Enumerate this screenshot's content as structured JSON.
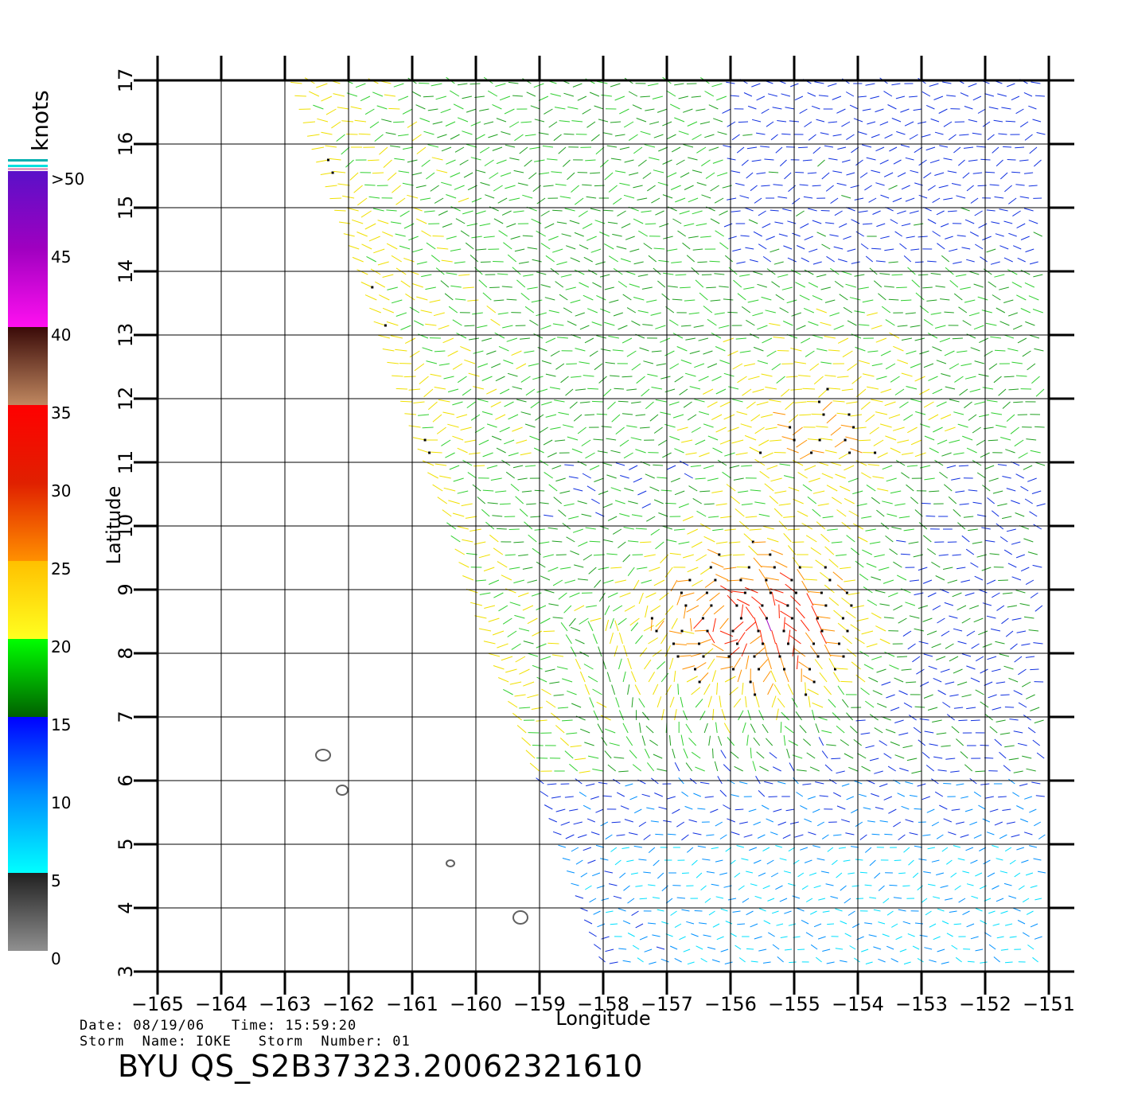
{
  "colorbar": {
    "unit_label": "knots",
    "tick_labels": [
      ">50",
      "45",
      "40",
      "35",
      "30",
      "25",
      "20",
      "15",
      "10",
      "5",
      "0"
    ],
    "stops": [
      {
        "value": 50,
        "color": "#5a10c8"
      },
      {
        "value": 45,
        "color": "#a000c0"
      },
      {
        "value": 40,
        "color": "#ff10f0"
      },
      {
        "value": 40,
        "color": "#3a0a08"
      },
      {
        "value": 35,
        "color": "#c08860"
      },
      {
        "value": 35,
        "color": "#ff0000"
      },
      {
        "value": 30,
        "color": "#e02000"
      },
      {
        "value": 25,
        "color": "#ff9000"
      },
      {
        "value": 25,
        "color": "#ffc000"
      },
      {
        "value": 20,
        "color": "#ffff20"
      },
      {
        "value": 20,
        "color": "#00ff00"
      },
      {
        "value": 15,
        "color": "#006000"
      },
      {
        "value": 15,
        "color": "#0000ff"
      },
      {
        "value": 10,
        "color": "#0090ff"
      },
      {
        "value": 5,
        "color": "#00ffff"
      },
      {
        "value": 5,
        "color": "#202020"
      },
      {
        "value": 0,
        "color": "#909090"
      }
    ]
  },
  "chart_data": {
    "type": "wind-vector-map",
    "xlabel": "Longitude",
    "ylabel": "Latitude",
    "xlim": [
      -165,
      -151
    ],
    "ylim": [
      3,
      17
    ],
    "x_ticks": [
      "−165",
      "−164",
      "−163",
      "−162",
      "−161",
      "−160",
      "−159",
      "−158",
      "−157",
      "−156",
      "−155",
      "−154",
      "−153",
      "−152",
      "−151"
    ],
    "y_ticks": [
      "3",
      "4",
      "5",
      "6",
      "7",
      "8",
      "9",
      "10",
      "11",
      "12",
      "13",
      "14",
      "15",
      "16",
      "17"
    ],
    "swath_corners": [
      [
        -162.8,
        17
      ],
      [
        -158,
        3.1
      ],
      [
        -151,
        3.1
      ],
      [
        -151,
        17
      ]
    ],
    "islands": [
      {
        "lon": -162.4,
        "lat": 6.4
      },
      {
        "lon": -162.1,
        "lat": 5.85
      },
      {
        "lon": -160.4,
        "lat": 4.7
      },
      {
        "lon": -159.3,
        "lat": 3.85
      }
    ]
  },
  "info": {
    "line1": "Date: 08/19/06   Time: 15:59:20",
    "line2": "Storm  Name: IOKE   Storm  Number: 01",
    "product": "BYU  QS_S2B37323.20062321610"
  }
}
